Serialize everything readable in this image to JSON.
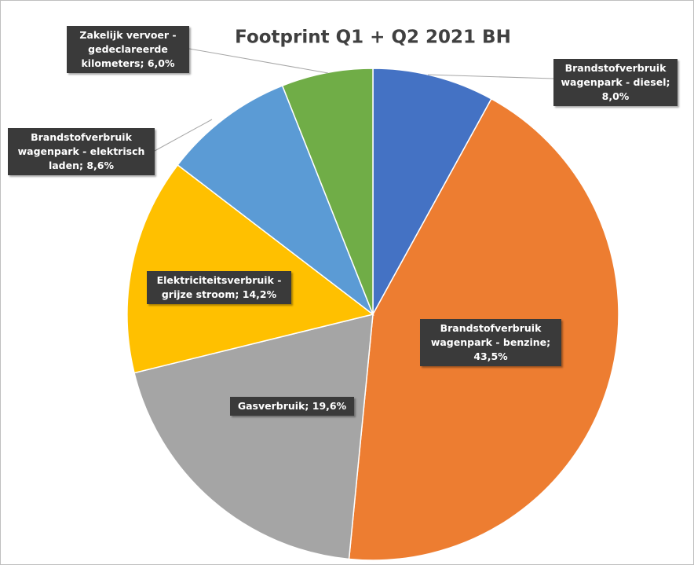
{
  "chart_data": {
    "type": "pie",
    "title": "Footprint Q1 + Q2 2021  BH",
    "values": [
      8.0,
      43.5,
      19.6,
      14.2,
      8.6,
      6.0
    ],
    "value_labels": [
      "Brandstofverbruik wagenpark - diesel; 8,0%",
      "Brandstofverbruik wagenpark - benzine; 43,5%",
      "Gasverbruik; 19,6%",
      "Elektriciteitsverbruik - grijze stroom; 14,2%",
      "Brandstofverbruik wagenpark - elektrisch laden; 8,6%",
      "Zakelijk vervoer - gedeclareerde kilometers; 6,0%"
    ],
    "colors": [
      "#4472c4",
      "#ed7d31",
      "#a5a5a5",
      "#ffc000",
      "#5b9bd5",
      "#70ad47"
    ]
  }
}
